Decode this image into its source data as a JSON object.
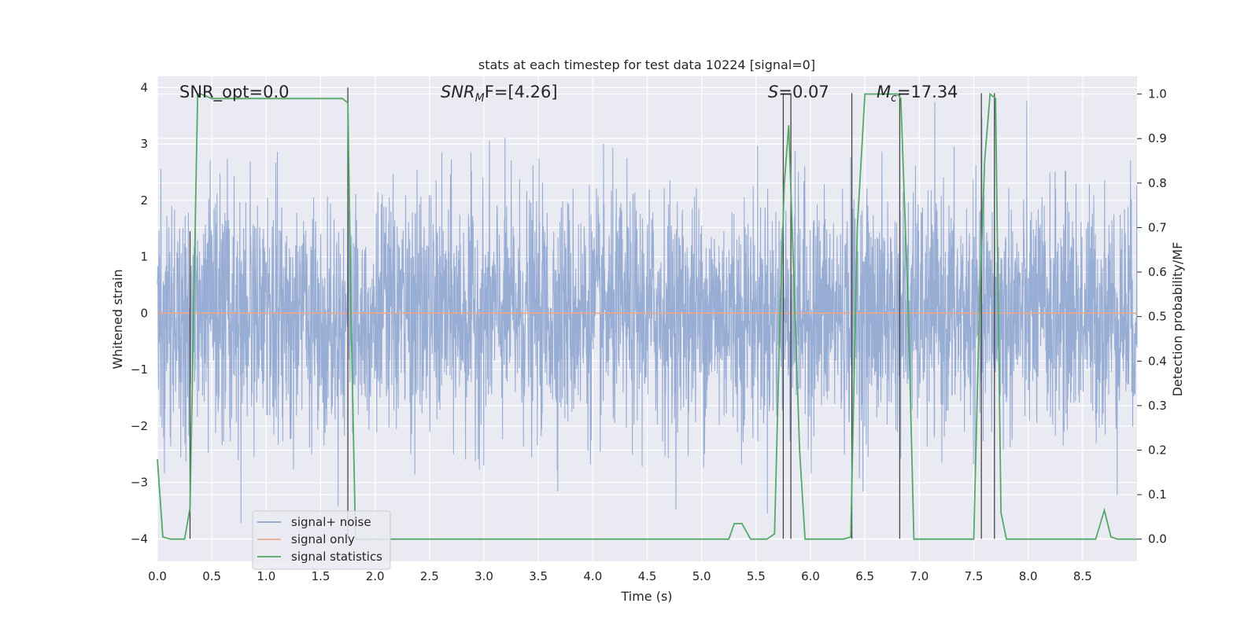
{
  "chart_data": {
    "type": "line",
    "title": "stats at each timestep for test data 10224 [signal=0]",
    "xlabel": "Time (s)",
    "ylabel": "Whitened strain",
    "y2label": "Detection probability/MF",
    "xlim": [
      0,
      9.0
    ],
    "ylim": [
      -4.4,
      4.2
    ],
    "y2lim": [
      -0.05,
      1.04
    ],
    "x_ticks": [
      0.0,
      0.5,
      1.0,
      1.5,
      2.0,
      2.5,
      3.0,
      3.5,
      4.0,
      4.5,
      5.0,
      5.5,
      6.0,
      6.5,
      7.0,
      7.5,
      8.0,
      8.5
    ],
    "x_tick_labels": [
      "0.0",
      "0.5",
      "1.0",
      "1.5",
      "2.0",
      "2.5",
      "3.0",
      "3.5",
      "4.0",
      "4.5",
      "5.0",
      "5.5",
      "6.0",
      "6.5",
      "7.0",
      "7.5",
      "8.0",
      "8.5"
    ],
    "y_ticks": [
      4,
      3,
      2,
      1,
      0,
      -1,
      -2,
      -3,
      -4
    ],
    "y_tick_labels": [
      "4",
      "3",
      "2",
      "1",
      "0",
      "−1",
      "−2",
      "−3",
      "−4"
    ],
    "y2_ticks": [
      1.0,
      0.9,
      0.8,
      0.7,
      0.6,
      0.5,
      0.4,
      0.3,
      0.2,
      0.1,
      0.0
    ],
    "y2_tick_labels": [
      "1.0",
      "0.9",
      "0.8",
      "0.7",
      "0.6",
      "0.5",
      "0.4",
      "0.3",
      "0.2",
      "0.1",
      "0.0"
    ],
    "grid": true,
    "legend_position": "bottom-left",
    "annotations": {
      "snr_opt": "SNR_opt=0.0",
      "snr_mf_main": "SNR",
      "snr_mf_sub": "M",
      "snr_mf_rest": "F=[4.26]",
      "s_main": "S",
      "s_rest": "=0.07",
      "mc_main": "M",
      "mc_sub": "c",
      "mc_rest": "=17.34"
    },
    "series": [
      {
        "name": "signal+ noise",
        "color": "#8fa6d0",
        "noise_amplitude": 3.9
      },
      {
        "name": "signal only",
        "color": "#e8a98c",
        "y": 0
      },
      {
        "name": "signal statistics",
        "color": "#55a868",
        "x": [
          0.0,
          0.05,
          0.12,
          0.25,
          0.3,
          0.37,
          0.4,
          0.5,
          1.0,
          1.5,
          1.7,
          1.75,
          1.78,
          1.82,
          1.9,
          2.5,
          3.0,
          4.0,
          5.0,
          5.25,
          5.3,
          5.37,
          5.45,
          5.6,
          5.67,
          5.72,
          5.76,
          5.8,
          5.9,
          5.95,
          6.1,
          6.3,
          6.37,
          6.43,
          6.5,
          6.8,
          6.83,
          6.9,
          6.95,
          7.2,
          7.5,
          7.55,
          7.6,
          7.65,
          7.7,
          7.75,
          7.8,
          8.0,
          8.5,
          8.62,
          8.7,
          8.76,
          8.82,
          9.0
        ],
        "values": [
          0.18,
          0.005,
          0.0,
          0.0,
          0.07,
          1.0,
          1.0,
          0.99,
          0.99,
          0.99,
          0.99,
          0.98,
          0.5,
          0.0,
          0.0,
          0.0,
          0.0,
          0.0,
          0.0,
          0.0,
          0.035,
          0.035,
          0.0,
          0.0,
          0.012,
          0.5,
          0.8,
          0.93,
          0.2,
          0.0,
          0.0,
          0.0,
          0.005,
          0.7,
          1.0,
          1.0,
          0.99,
          0.5,
          0.0,
          0.0,
          0.0,
          0.5,
          0.85,
          1.0,
          0.99,
          0.06,
          0.0,
          0.0,
          0.0,
          0.0,
          0.065,
          0.005,
          0.0,
          0.0
        ]
      }
    ],
    "vertical_markers": [
      {
        "x": 0.3,
        "y_range": [
          -4,
          1.45
        ]
      },
      {
        "x": 1.75,
        "y_range": [
          -4,
          4.0
        ]
      },
      {
        "x": 5.75,
        "y_range": [
          -4,
          3.9
        ]
      },
      {
        "x": 5.82,
        "y_range": [
          -4,
          3.9
        ]
      },
      {
        "x": 6.38,
        "y_range": [
          -4,
          3.9
        ]
      },
      {
        "x": 6.82,
        "y_range": [
          -4,
          3.9
        ]
      },
      {
        "x": 7.57,
        "y_range": [
          -4,
          3.9
        ]
      },
      {
        "x": 7.69,
        "y_range": [
          -4,
          3.9
        ]
      }
    ]
  }
}
